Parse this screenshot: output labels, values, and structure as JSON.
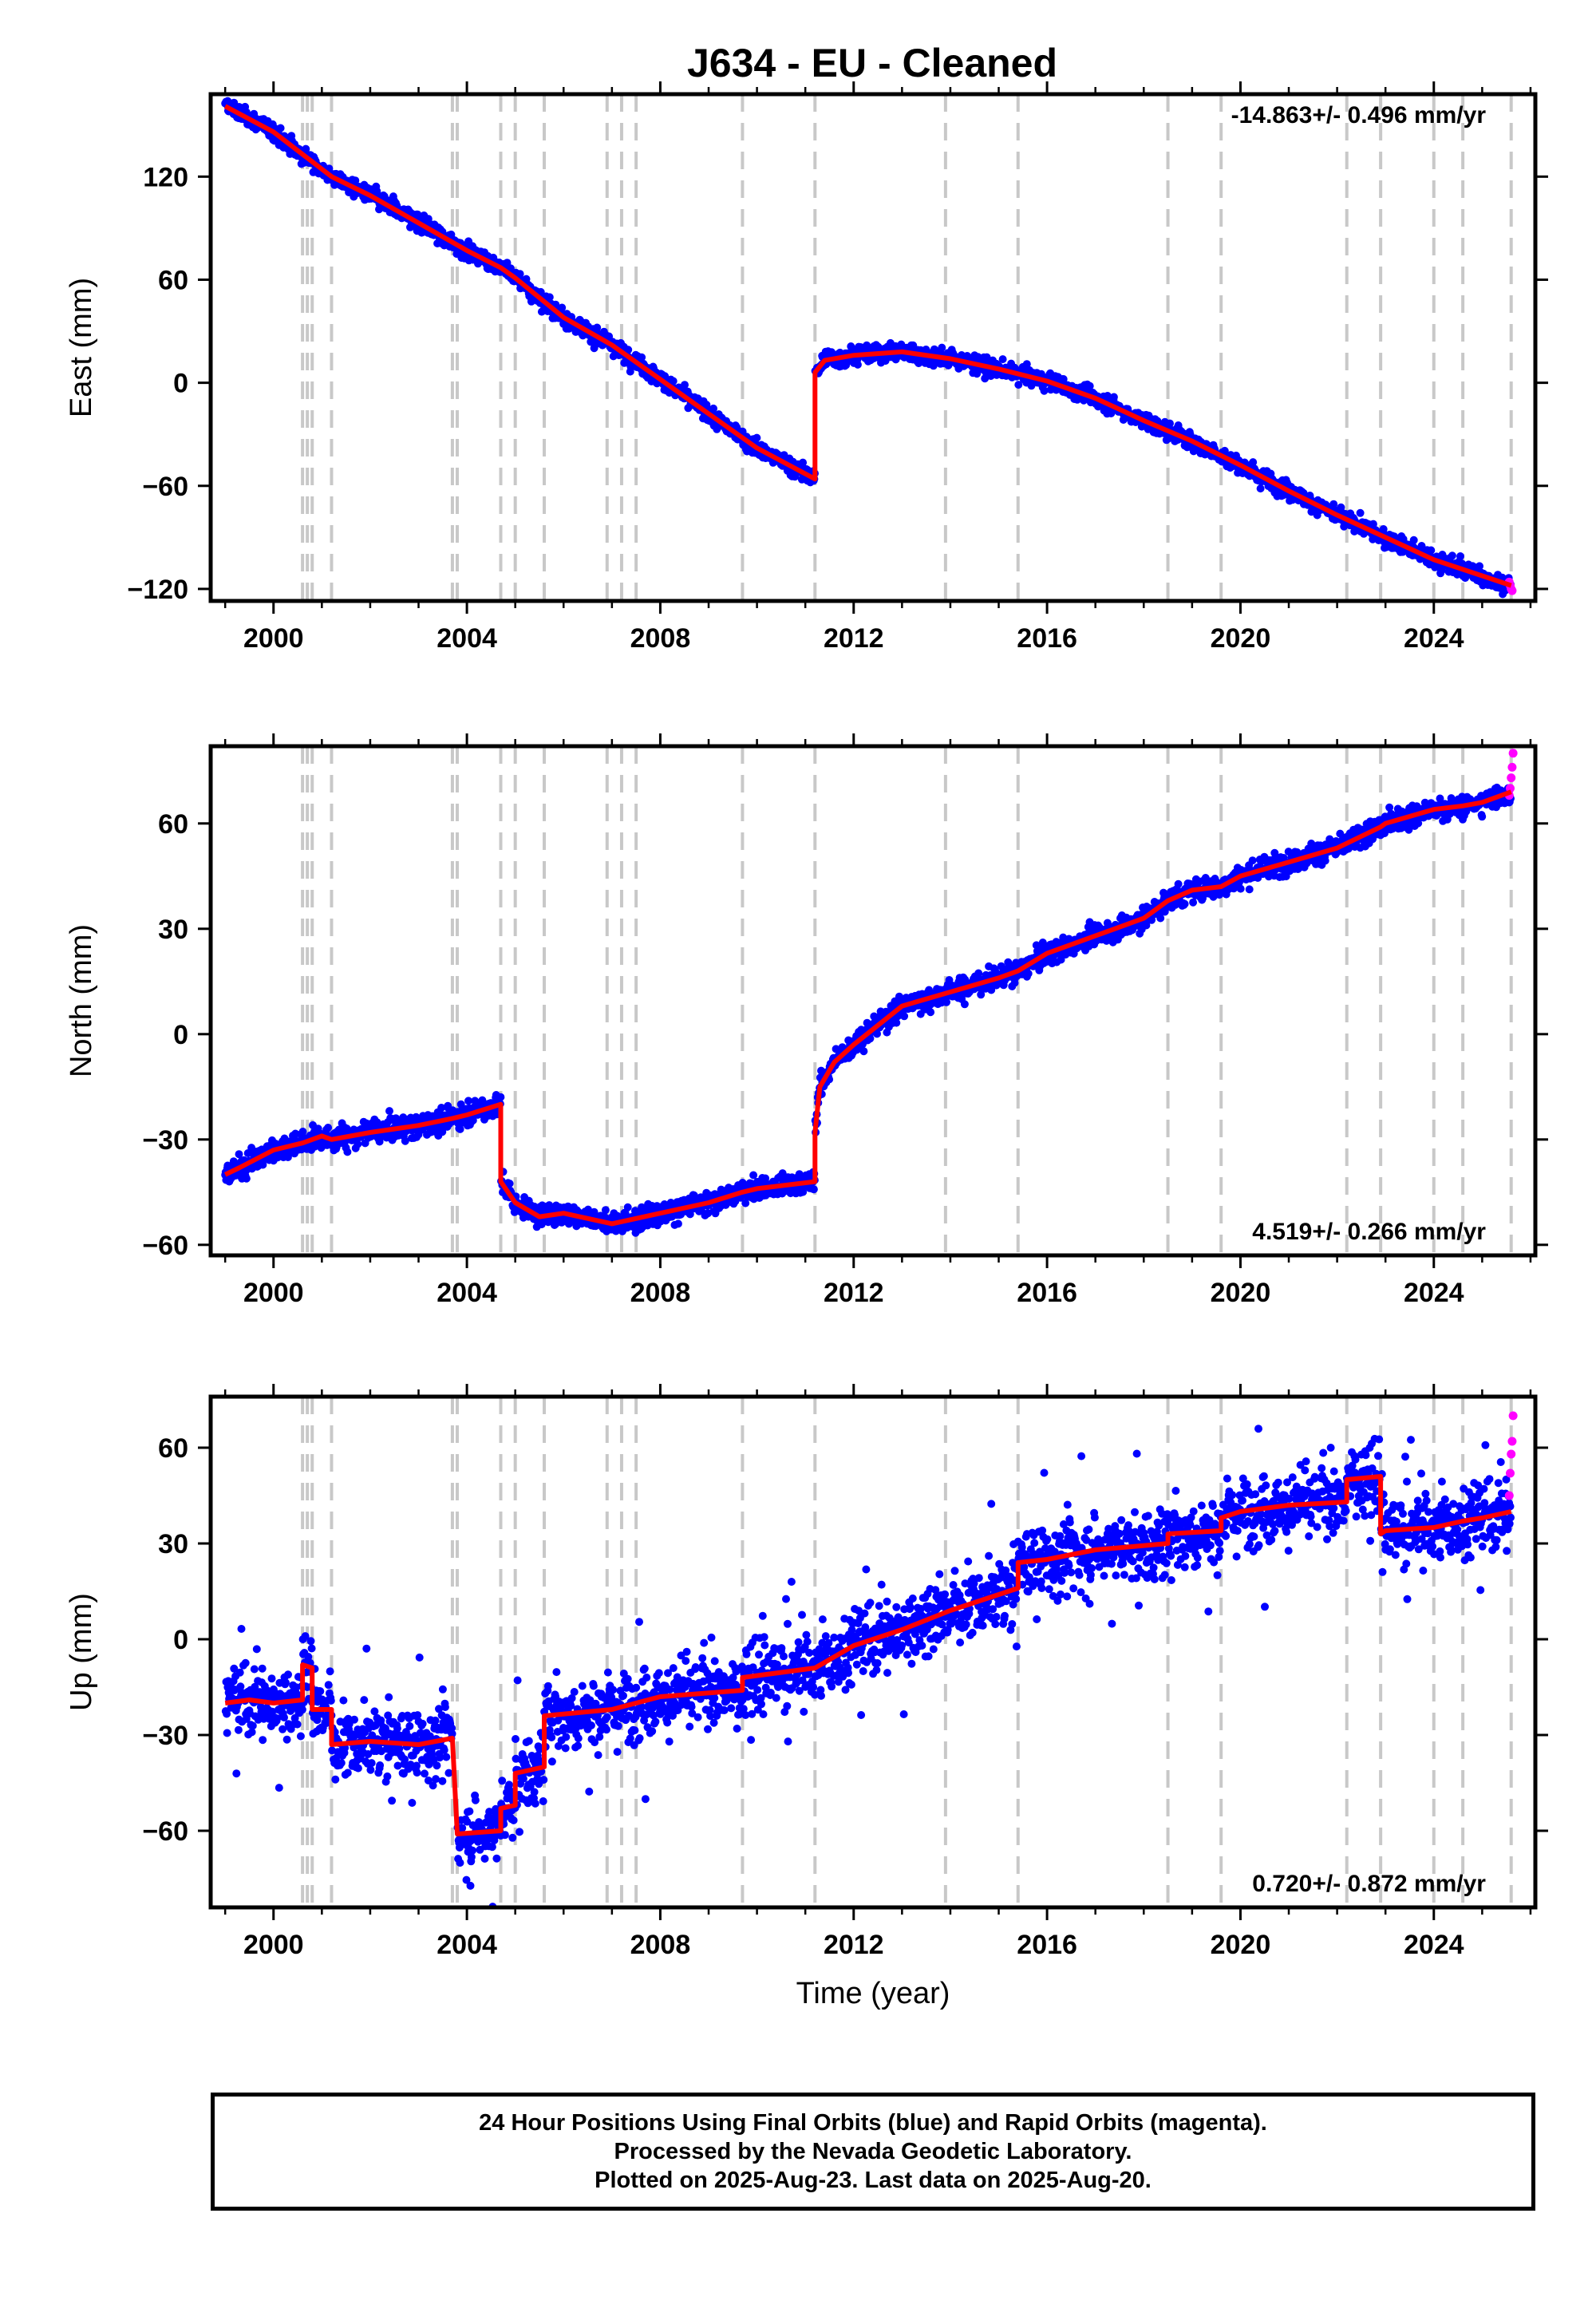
{
  "title": "J634  - EU - Cleaned",
  "caption": {
    "line1": "24 Hour Positions Using Final Orbits (blue) and Rapid Orbits (magenta).",
    "line2": "Processed by the Nevada Geodetic Laboratory.",
    "line3": "Plotted on 2025-Aug-23. Last data on 2025-Aug-20."
  },
  "colors": {
    "final_orbits": "#0000ff",
    "rapid_orbits": "#ff00ff",
    "model": "#ff0000",
    "events": "#c8c8c8"
  },
  "chart_data": [
    {
      "type": "scatter",
      "component": "east",
      "ylabel": "East (mm)",
      "xlabel": "",
      "rate_label": "-14.863+/- 0.496 mm/yr",
      "xlim": [
        1998.7,
        2026.1
      ],
      "ylim": [
        -127,
        168
      ],
      "xticks": [
        2000,
        2004,
        2008,
        2012,
        2016,
        2020,
        2024
      ],
      "yticks": [
        120,
        60,
        0,
        -60,
        -120
      ],
      "event_lines": [
        2000.6,
        2000.7,
        2000.8,
        2001.2,
        2003.7,
        2003.8,
        2004.7,
        2005.0,
        2005.6,
        2006.9,
        2007.2,
        2007.5,
        2009.7,
        2011.2,
        2013.9,
        2015.4,
        2018.5,
        2019.6,
        2022.2,
        2022.9,
        2024.0,
        2024.6,
        2025.6
      ],
      "model_segments": [
        {
          "x": [
            1999.0,
            2000.0,
            2001.2,
            2002.0,
            2003.0,
            2004.0,
            2004.7,
            2005.0,
            2006.0,
            2007.0,
            2008.0,
            2009.0,
            2010.0,
            2011.2
          ],
          "y": [
            161,
            146,
            120,
            109,
            93,
            77,
            67,
            61,
            38,
            22,
            2,
            -18,
            -38,
            -56
          ]
        },
        {
          "x": [
            2011.2,
            2011.4,
            2012.0,
            2013.0,
            2014.0,
            2015.0,
            2016.0,
            2017.0,
            2018.0,
            2019.0,
            2020.0,
            2021.0,
            2022.0,
            2023.0,
            2024.0,
            2025.6
          ],
          "y": [
            6,
            13,
            16,
            18,
            14,
            8,
            1,
            -9,
            -22,
            -34,
            -48,
            -63,
            -77,
            -90,
            -103,
            -118
          ]
        }
      ],
      "scatter": {
        "spread": 3.5,
        "outliers": 0.0
      },
      "rapid_points": {
        "x": [
          2025.56,
          2025.58,
          2025.6,
          2025.62
        ],
        "y": [
          -116,
          -118,
          -120,
          -121
        ]
      }
    },
    {
      "type": "scatter",
      "component": "north",
      "ylabel": "North (mm)",
      "xlabel": "",
      "rate_label": "4.519+/- 0.266 mm/yr",
      "xlim": [
        1998.7,
        2026.1
      ],
      "ylim": [
        -63,
        82
      ],
      "xticks": [
        2000,
        2004,
        2008,
        2012,
        2016,
        2020,
        2024
      ],
      "yticks": [
        60,
        30,
        0,
        -30,
        -60
      ],
      "event_lines": [
        2000.6,
        2000.7,
        2000.8,
        2001.2,
        2003.7,
        2003.8,
        2004.7,
        2005.0,
        2005.6,
        2006.9,
        2007.2,
        2007.5,
        2009.7,
        2011.2,
        2013.9,
        2015.4,
        2018.5,
        2019.6,
        2022.2,
        2022.9,
        2024.0,
        2024.6,
        2025.6
      ],
      "model_segments": [
        {
          "x": [
            1999.0,
            1999.3,
            2000.0,
            2000.6,
            2001.0,
            2001.2,
            2002.0,
            2003.0,
            2003.7,
            2004.0,
            2004.7
          ],
          "y": [
            -40,
            -38,
            -33,
            -31,
            -29,
            -30,
            -28,
            -26,
            -24,
            -23,
            -20
          ]
        },
        {
          "x": [
            2004.7,
            2005.0,
            2005.5,
            2006.0,
            2007.0,
            2008.0,
            2009.0,
            2009.7,
            2010.0,
            2011.2
          ],
          "y": [
            -42,
            -48,
            -52,
            -51,
            -54,
            -51,
            -48,
            -45,
            -44,
            -42
          ]
        },
        {
          "x": [
            2011.2,
            2011.3,
            2011.6,
            2012.0,
            2013.0,
            2014.0,
            2015.0,
            2015.4,
            2016.0,
            2017.0,
            2018.0,
            2018.5,
            2019.0,
            2019.6,
            2020.0,
            2021.0,
            2022.0,
            2022.9,
            2023.0,
            2024.0,
            2024.6,
            2025.0,
            2025.6
          ],
          "y": [
            -28,
            -15,
            -8,
            -3,
            8,
            12,
            16,
            18,
            23,
            28,
            33,
            38,
            41,
            42,
            45,
            49,
            53,
            59,
            60,
            64,
            65,
            66,
            69
          ]
        }
      ],
      "scatter": {
        "spread": 2.2,
        "outliers": 0.0
      },
      "rapid_points": {
        "x": [
          2025.56,
          2025.58,
          2025.6,
          2025.62,
          2025.64
        ],
        "y": [
          68,
          70,
          73,
          76,
          80
        ]
      }
    },
    {
      "type": "scatter",
      "component": "up",
      "ylabel": "Up (mm)",
      "xlabel": "Time (year)",
      "rate_label": "0.720+/- 0.872 mm/yr",
      "xlim": [
        1998.7,
        2026.1
      ],
      "ylim": [
        -84,
        76
      ],
      "xticks": [
        2000,
        2004,
        2008,
        2012,
        2016,
        2020,
        2024
      ],
      "yticks": [
        60,
        30,
        0,
        -30,
        -60
      ],
      "event_lines": [
        2000.6,
        2000.7,
        2000.8,
        2001.2,
        2003.7,
        2003.8,
        2004.7,
        2005.0,
        2005.6,
        2006.9,
        2007.2,
        2007.5,
        2009.7,
        2011.2,
        2013.9,
        2015.4,
        2018.5,
        2019.6,
        2022.2,
        2022.9,
        2024.0,
        2024.6,
        2025.6
      ],
      "model_segments": [
        {
          "x": [
            1999.0,
            1999.5,
            2000.0,
            2000.6
          ],
          "y": [
            -20,
            -19,
            -20,
            -19
          ]
        },
        {
          "x": [
            2000.6,
            2000.8
          ],
          "y": [
            -8,
            -9
          ]
        },
        {
          "x": [
            2000.8,
            2001.2
          ],
          "y": [
            -22,
            -22
          ]
        },
        {
          "x": [
            2001.2,
            2002.0,
            2003.0,
            2003.7
          ],
          "y": [
            -33,
            -32,
            -33,
            -31
          ]
        },
        {
          "x": [
            2003.8,
            2004.7
          ],
          "y": [
            -61,
            -60
          ]
        },
        {
          "x": [
            2004.7,
            2005.0
          ],
          "y": [
            -53,
            -52
          ]
        },
        {
          "x": [
            2005.0,
            2005.6
          ],
          "y": [
            -42,
            -40
          ]
        },
        {
          "x": [
            2005.6,
            2007.0,
            2008.0,
            2009.7
          ],
          "y": [
            -24,
            -22,
            -18,
            -16
          ]
        },
        {
          "x": [
            2009.7,
            2011.2,
            2012.0,
            2013.0,
            2014.0,
            2015.4
          ],
          "y": [
            -12,
            -9,
            -2,
            3,
            9,
            16
          ]
        },
        {
          "x": [
            2015.4,
            2016.0,
            2017.0,
            2018.5
          ],
          "y": [
            24,
            25,
            28,
            30
          ]
        },
        {
          "x": [
            2018.5,
            2019.6
          ],
          "y": [
            33,
            34
          ]
        },
        {
          "x": [
            2019.6,
            2020.0,
            2021.0,
            2022.2
          ],
          "y": [
            38,
            40,
            42,
            43
          ]
        },
        {
          "x": [
            2022.2,
            2022.9
          ],
          "y": [
            50,
            51
          ]
        },
        {
          "x": [
            2022.9,
            2023.0,
            2024.0,
            2024.6,
            2025.0,
            2025.6
          ],
          "y": [
            33,
            34,
            35,
            37,
            38,
            40
          ]
        }
      ],
      "scatter": {
        "spread": 7.5,
        "outliers": 0.06
      },
      "rapid_points": {
        "x": [
          2025.56,
          2025.58,
          2025.6,
          2025.62,
          2025.64
        ],
        "y": [
          45,
          52,
          58,
          62,
          70
        ]
      }
    }
  ]
}
